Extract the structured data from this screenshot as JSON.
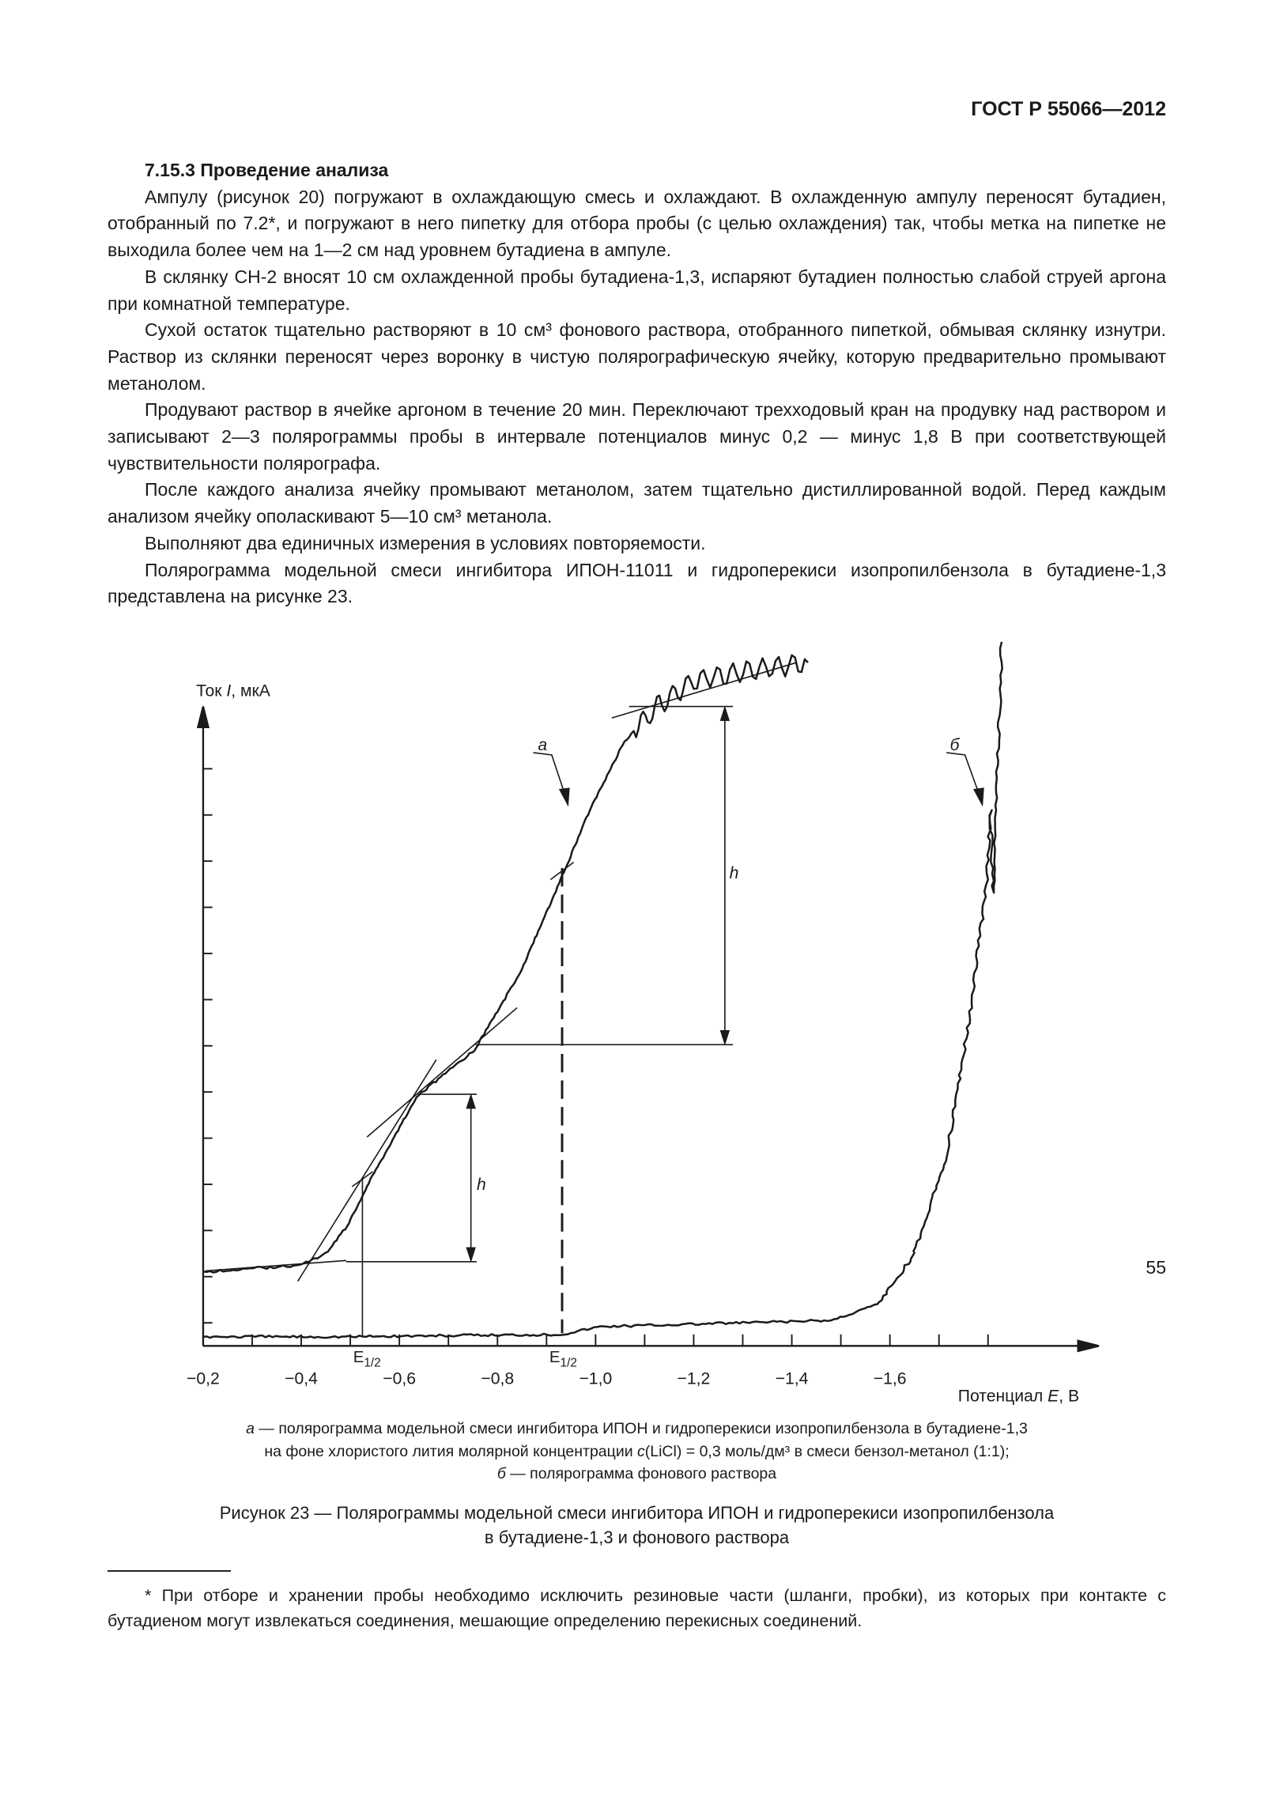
{
  "header": {
    "standard": "ГОСТ Р 55066—2012"
  },
  "section": {
    "heading": "7.15.3 Проведение анализа",
    "paragraphs": [
      "Ампулу (рисунок 20) погружают в охлаждающую смесь и охлаждают. В охлажденную ампулу переносят бутадиен, отобранный по 7.2*, и погружают в него пипетку для отбора пробы (с целью охлаждения) так, чтобы метка на пипетке не выходила более чем на 1—2 см над уровнем бутадиена в ампуле.",
      "В склянку СН-2 вносят 10 см охлажденной  пробы  бутадиена-1,3,  испаряют бутадиен полностью слабой струей аргона при комнатной температуре.",
      "Сухой остаток тщательно растворяют в 10 см³ фонового раствора, отобранного пипеткой, обмывая склянку изнутри.  Раствор  из  склянки  переносят через воронку в чистую полярографическую ячейку, которую предварительно промывают метанолом.",
      "Продувают раствор в ячейке аргоном в течение 20 мин. Переключают трехходовый кран на продувку над  раствором  и  записывают  2—3  полярограммы  пробы  в  интервале потенциалов минус 0,2 — минус 1,8 В при соответствующей чувствительности полярографа.",
      "После каждого анализа ячейку промывают метанолом, затем тщательно дистиллированной водой. Перед каждым анализом ячейку ополаскивают 5—10 см³ метанола.",
      "Выполняют два единичных измерения в условиях повторяемости.",
      "Полярограмма модельной смеси ингибитора ИПОН-11011 и гидроперекиси изопропилбензола в бутадиене-1,3 представлена на рисунке 23."
    ]
  },
  "chart_data": {
    "type": "line",
    "ylabel_pre": "Ток ",
    "ylabel_var": "I",
    "ylabel_post": ", мкА",
    "xlabel_pre": "Потенциал ",
    "xlabel_var": "E",
    "xlabel_post": ", В",
    "xlim": [
      -0.2,
      -1.85
    ],
    "x_tick_labels": [
      "−0,2",
      "−0,4",
      "−0,6",
      "−0,8",
      "−1,0",
      "−1,2",
      "−1,4",
      "−1,6"
    ],
    "x_tick_values": [
      -0.2,
      -0.4,
      -0.6,
      -0.8,
      -1.0,
      -1.2,
      -1.4,
      -1.6
    ],
    "y_tick_count": 13,
    "y_tick_labels_shown": false,
    "series": [
      {
        "name": "а",
        "points": [
          [
            -0.2,
            1.6
          ],
          [
            -0.398,
            1.75
          ],
          [
            -0.45,
            2.0
          ],
          [
            -0.494,
            2.6
          ],
          [
            -0.541,
            3.6
          ],
          [
            -0.635,
            5.4
          ],
          [
            -0.753,
            6.4
          ],
          [
            -0.847,
            8.1
          ],
          [
            -0.929,
            10.1
          ],
          [
            -0.988,
            11.6
          ],
          [
            -1.059,
            13.1
          ],
          [
            -1.13,
            13.9
          ],
          [
            -1.2,
            14.4
          ],
          [
            -1.294,
            14.6
          ],
          [
            -1.433,
            14.8
          ]
        ]
      },
      {
        "name": "б",
        "points": [
          [
            -0.2,
            0.2
          ],
          [
            -0.49,
            0.2
          ],
          [
            -0.93,
            0.25
          ],
          [
            -1.01,
            0.42
          ],
          [
            -1.48,
            0.55
          ],
          [
            -1.574,
            0.9
          ],
          [
            -1.645,
            1.9
          ],
          [
            -1.715,
            4.1
          ],
          [
            -1.762,
            7.1
          ],
          [
            -1.798,
            10.1
          ],
          [
            -1.805,
            11.6
          ],
          [
            -1.81,
            9.8
          ],
          [
            -1.821,
            13.1
          ],
          [
            -1.828,
            15.25
          ]
        ]
      }
    ],
    "annotations": {
      "curve_a_label": "а",
      "curve_b_label": "б",
      "h_label": "h",
      "e_half_main": "E",
      "e_half_sub": "1/2",
      "e_half_values": [
        -0.53,
        -0.94
      ]
    },
    "colors": {
      "ink": "#1a1a1a"
    }
  },
  "legend": {
    "a_letter": "а",
    "a_text1": " — полярограмма модельной смеси ингибитора ИПОН и гидроперекиси изопропилбензола в бутадиене-1,3",
    "a_text2_pre": "на фоне хлористого лития молярной концентрации ",
    "a_text2_c": "c",
    "a_text2_post": "(LiCl) = 0,3 моль/дм³ в смеси бензол-метанол (1:1);",
    "b_letter": "б",
    "b_text": " — полярограмма фонового раствора"
  },
  "figure": {
    "title_line1": "Рисунок 23 — Полярограммы модельной смеси ингибитора ИПОН и гидроперекиси изопропилбензола",
    "title_line2": "в бутадиене-1,3 и фонового раствора"
  },
  "footnote": "* При отборе и хранении пробы необходимо исключить резиновые части (шланги, пробки), из которых при контакте с бутадиеном могут извлекаться соединения, мешающие определению перекисных соединений.",
  "page_number": "55"
}
